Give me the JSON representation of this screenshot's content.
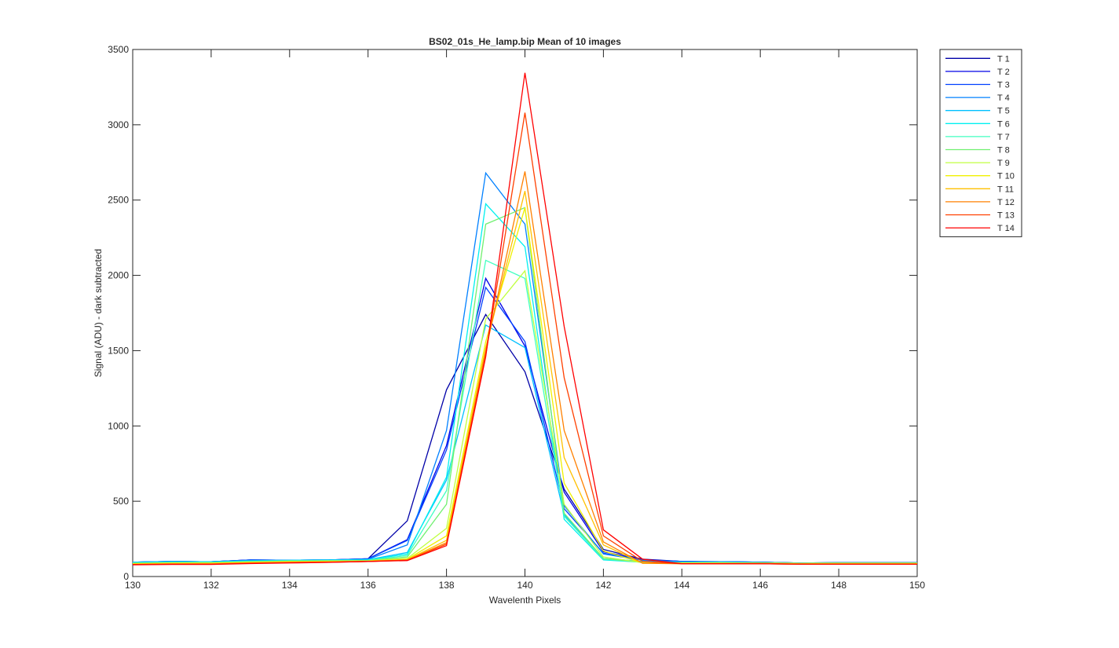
{
  "chart_data": {
    "type": "line",
    "title": "BS02_01s_He_lamp.bip  Mean of 10 images",
    "xlabel": "Wavelenth Pixels",
    "ylabel": "Signal (ADU) - dark subtracted",
    "xlim": [
      130,
      150
    ],
    "ylim": [
      0,
      3500
    ],
    "xticks": [
      130,
      132,
      134,
      136,
      138,
      140,
      142,
      144,
      146,
      148,
      150
    ],
    "yticks": [
      0,
      500,
      1000,
      1500,
      2000,
      2500,
      3000,
      3500
    ],
    "grid": false,
    "legend_position": "outside-top-right",
    "x": [
      130,
      131,
      132,
      133,
      134,
      135,
      136,
      137,
      138,
      139,
      140,
      141,
      142,
      143,
      144,
      145,
      146,
      147,
      148,
      149,
      150
    ],
    "series": [
      {
        "name": "T 1",
        "color": "#0000a8",
        "values": [
          95,
          100,
          98,
          110,
          108,
          110,
          118,
          370,
          1240,
          1740,
          1360,
          580,
          180,
          115,
          100,
          98,
          95,
          90,
          92,
          92,
          92
        ]
      },
      {
        "name": "T 2",
        "color": "#0000e6",
        "values": [
          95,
          100,
          98,
          110,
          108,
          110,
          118,
          245,
          870,
          1980,
          1530,
          560,
          165,
          112,
          100,
          98,
          95,
          90,
          92,
          92,
          92
        ]
      },
      {
        "name": "T 3",
        "color": "#0040ff",
        "values": [
          95,
          100,
          98,
          110,
          108,
          110,
          118,
          240,
          840,
          1920,
          1560,
          450,
          155,
          110,
          100,
          98,
          95,
          90,
          92,
          92,
          92
        ]
      },
      {
        "name": "T 4",
        "color": "#0080ff",
        "values": [
          95,
          100,
          98,
          108,
          108,
          110,
          115,
          210,
          970,
          2680,
          2340,
          470,
          150,
          108,
          98,
          98,
          95,
          90,
          92,
          92,
          92
        ]
      },
      {
        "name": "T 5",
        "color": "#00c0ff",
        "values": [
          95,
          98,
          98,
          105,
          108,
          110,
          112,
          160,
          640,
          1670,
          1520,
          410,
          120,
          100,
          95,
          95,
          92,
          90,
          90,
          90,
          90
        ]
      },
      {
        "name": "T 6",
        "color": "#00f0f0",
        "values": [
          92,
          96,
          96,
          102,
          106,
          108,
          110,
          150,
          660,
          2475,
          2190,
          380,
          110,
          95,
          92,
          92,
          90,
          88,
          90,
          90,
          90
        ]
      },
      {
        "name": "T 7",
        "color": "#40ffc0",
        "values": [
          90,
          94,
          94,
          100,
          104,
          106,
          108,
          140,
          570,
          2100,
          1980,
          400,
          115,
          95,
          92,
          92,
          90,
          88,
          90,
          90,
          90
        ]
      },
      {
        "name": "T 8",
        "color": "#70f070",
        "values": [
          88,
          92,
          92,
          98,
          102,
          104,
          106,
          130,
          480,
          2340,
          2450,
          420,
          120,
          95,
          92,
          92,
          90,
          88,
          90,
          90,
          90
        ]
      },
      {
        "name": "T 9",
        "color": "#c0ff40",
        "values": [
          86,
          90,
          90,
          96,
          100,
          102,
          104,
          120,
          320,
          1710,
          2030,
          480,
          130,
          92,
          90,
          90,
          90,
          88,
          88,
          88,
          88
        ]
      },
      {
        "name": "T 10",
        "color": "#f0f000",
        "values": [
          84,
          88,
          88,
          94,
          98,
          100,
          103,
          115,
          270,
          1560,
          2450,
          620,
          170,
          90,
          88,
          88,
          88,
          86,
          86,
          86,
          86
        ]
      },
      {
        "name": "T 11",
        "color": "#ffc000",
        "values": [
          82,
          86,
          86,
          92,
          96,
          98,
          102,
          112,
          240,
          1520,
          2560,
          790,
          210,
          88,
          86,
          86,
          86,
          84,
          84,
          84,
          84
        ]
      },
      {
        "name": "T 12",
        "color": "#ff8000",
        "values": [
          80,
          84,
          84,
          90,
          94,
          96,
          100,
          110,
          225,
          1500,
          2690,
          970,
          230,
          88,
          85,
          85,
          85,
          82,
          82,
          82,
          82
        ]
      },
      {
        "name": "T 13",
        "color": "#ff4000",
        "values": [
          80,
          82,
          82,
          88,
          92,
          95,
          100,
          108,
          215,
          1470,
          3080,
          1320,
          270,
          100,
          85,
          85,
          85,
          82,
          82,
          82,
          82
        ]
      },
      {
        "name": "T 14",
        "color": "#ff0000",
        "values": [
          78,
          80,
          80,
          86,
          90,
          94,
          100,
          106,
          205,
          1460,
          3345,
          1660,
          310,
          115,
          85,
          85,
          85,
          82,
          82,
          82,
          82
        ]
      }
    ]
  }
}
